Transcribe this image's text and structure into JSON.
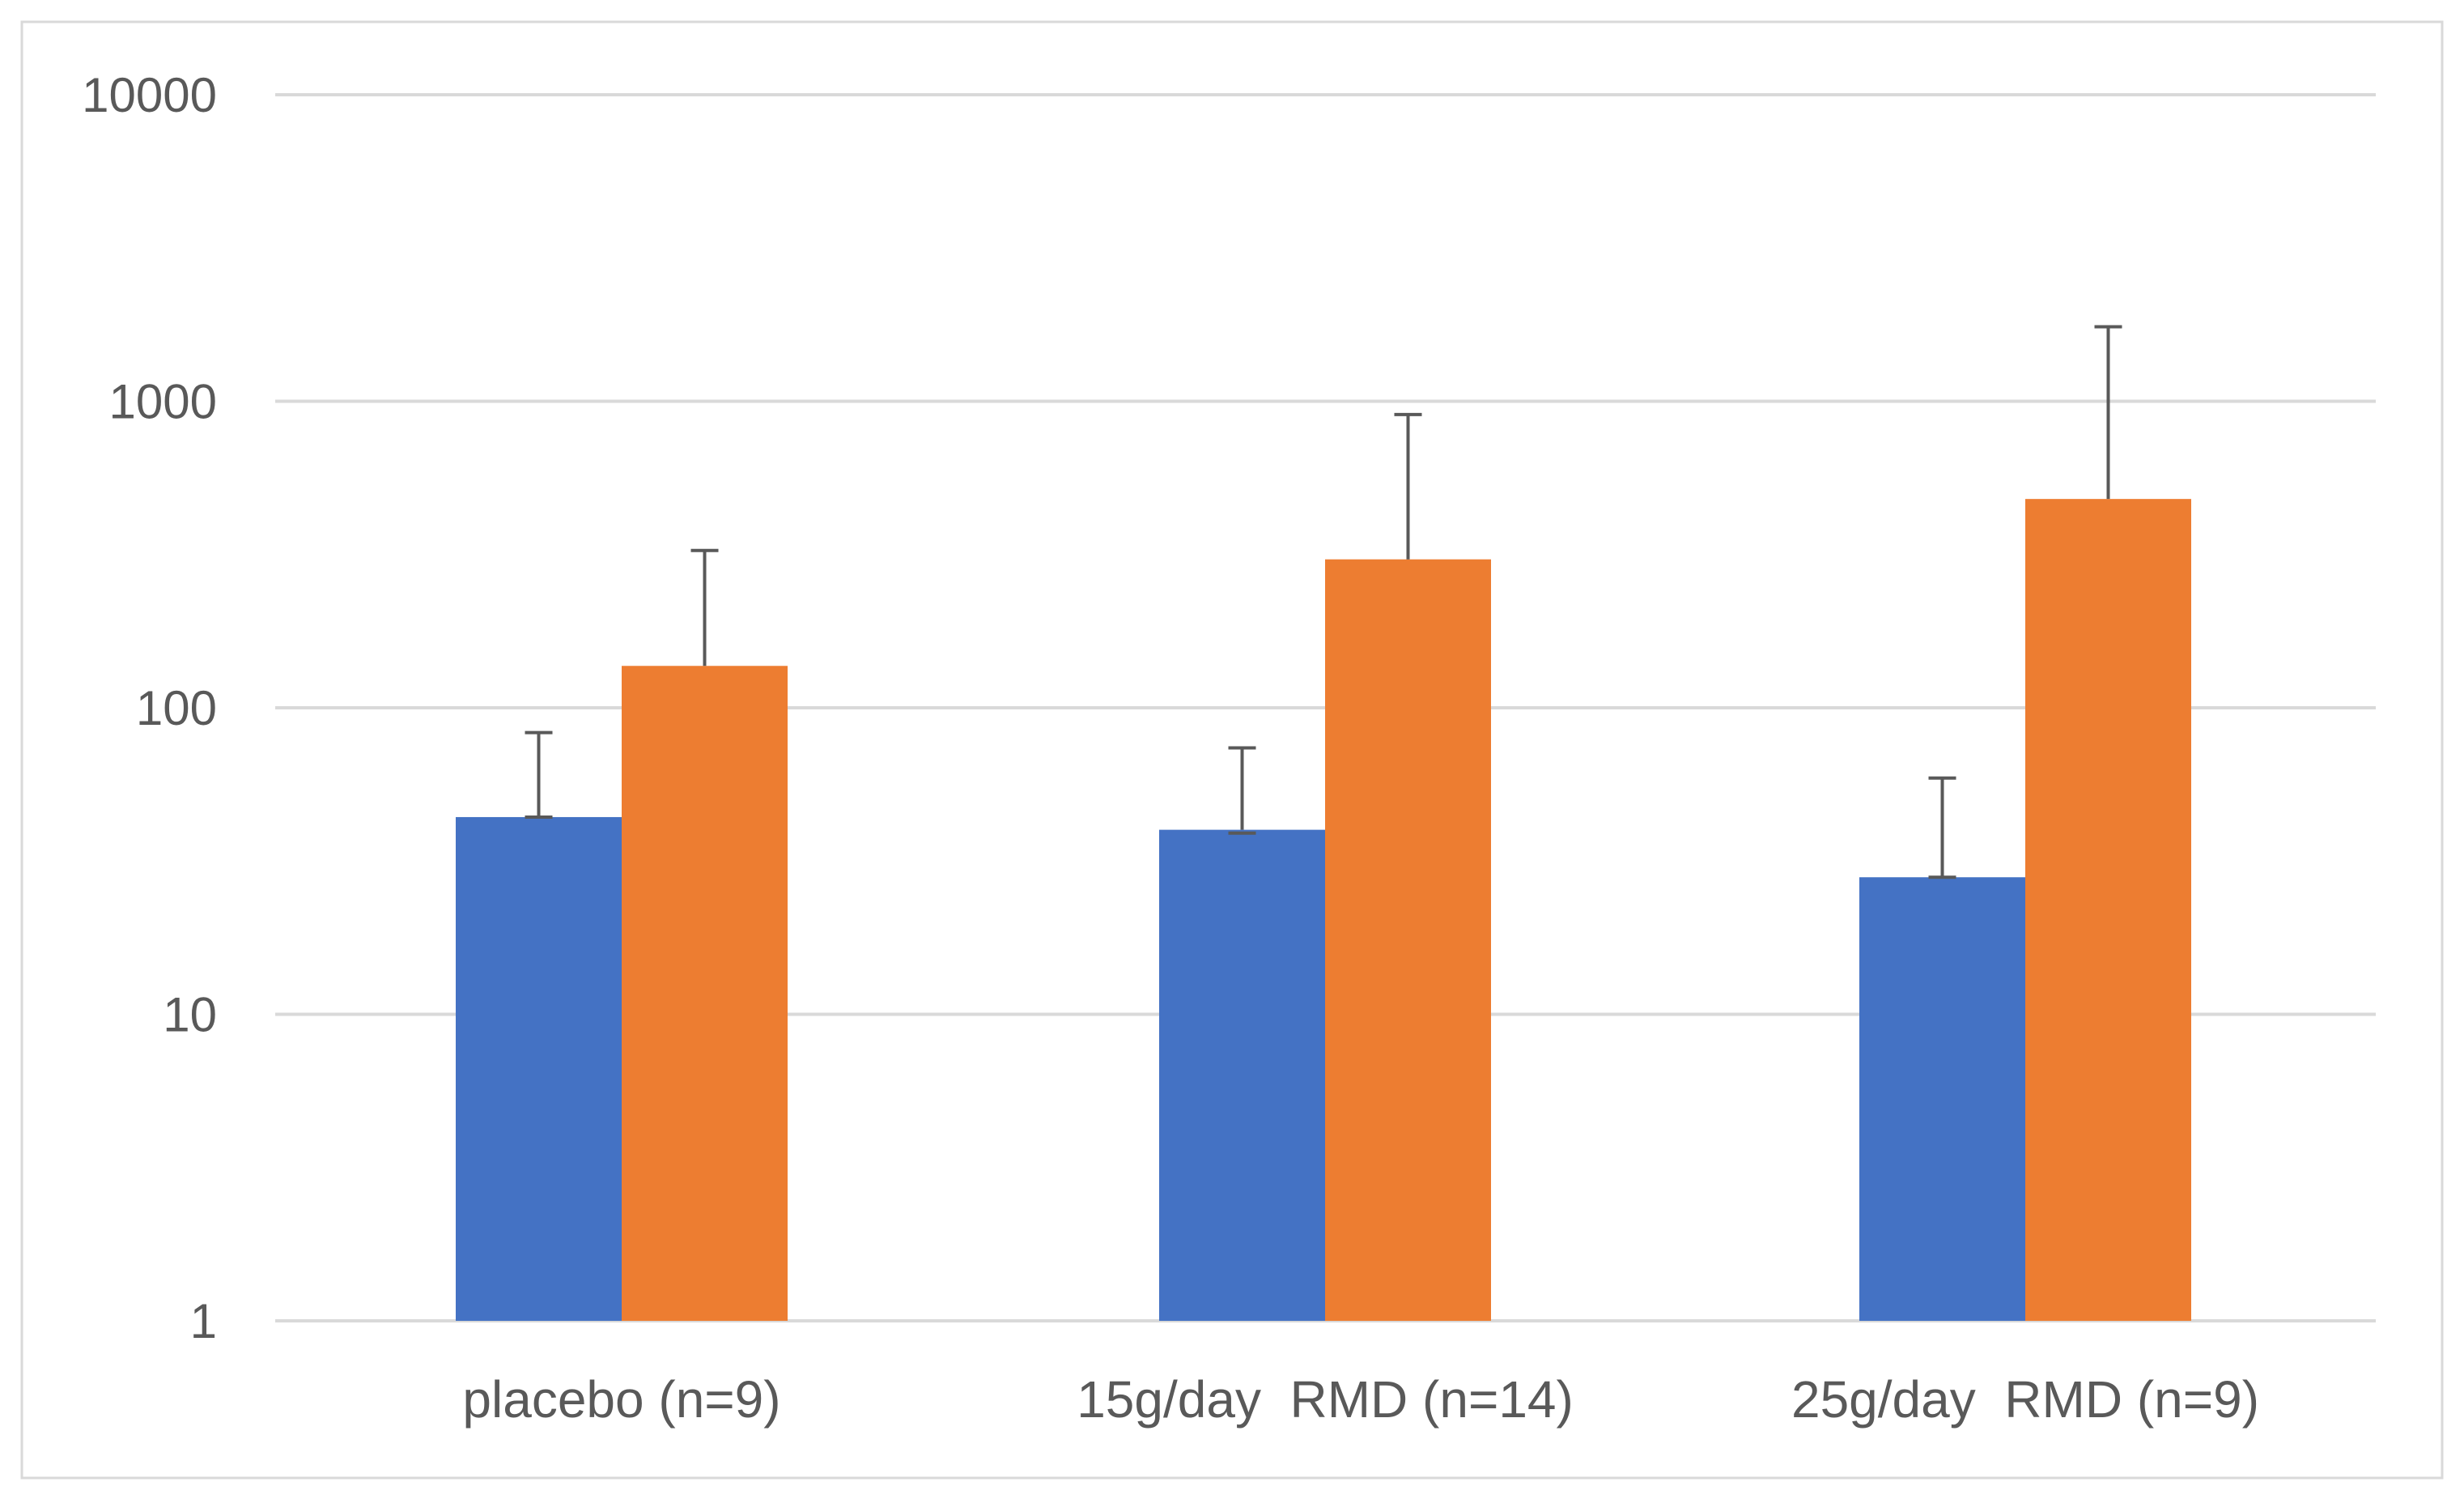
{
  "chart_data": {
    "type": "bar",
    "title": "",
    "xlabel": "",
    "ylabel": "",
    "yscale": "log",
    "ylim": [
      1,
      10000
    ],
    "yticks": [
      1,
      10,
      100,
      1000,
      10000
    ],
    "ytick_labels": [
      "1",
      "10",
      "100",
      "1000",
      "10000"
    ],
    "grid": true,
    "legend": "none",
    "categories": [
      "placebo (n=9)",
      "15g/day  RMD (n=14)",
      "25g/day  RMD (n=9)"
    ],
    "series": [
      {
        "color": "#4472C4",
        "values": [
          44,
          40,
          28
        ],
        "error_upper": [
          83,
          74,
          59
        ],
        "error_lower": [
          44,
          39,
          28
        ]
      },
      {
        "color": "#ED7D31",
        "values": [
          137,
          305,
          480
        ],
        "error_upper": [
          326,
          905,
          1750
        ]
      }
    ],
    "colors": {
      "gridline": "#D9D9D9",
      "error_bar": "#595959",
      "frame": "#D9D9D9"
    }
  }
}
